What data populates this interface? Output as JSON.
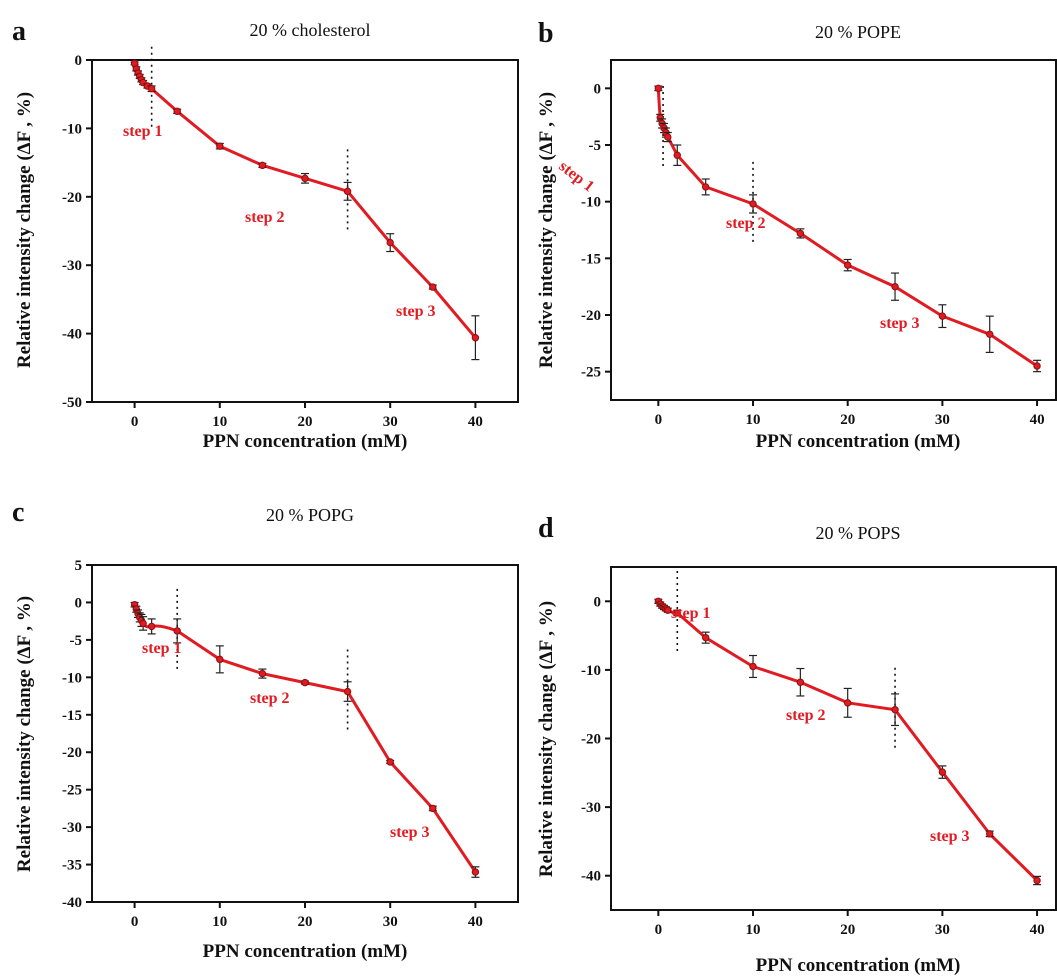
{
  "chart_data": [
    {
      "type": "line",
      "panel_label": "a",
      "title": "20 % cholesterol",
      "xlabel": "PPN concentration (mM)",
      "ylabel": "Relative intensity change (ΔF ,  %)",
      "xlim": [
        -5,
        45
      ],
      "ylim": [
        -50,
        0
      ],
      "xticks": [
        0,
        10,
        20,
        30,
        40
      ],
      "yticks": [
        -50,
        -40,
        -30,
        -20,
        -10,
        0
      ],
      "x": [
        0,
        0.2,
        0.4,
        0.6,
        0.8,
        1.0,
        1.5,
        2,
        5,
        10,
        15,
        20,
        25,
        30,
        35,
        40
      ],
      "series": [
        {
          "color": "#e11b22",
          "values": [
            -0.5,
            -1.3,
            -1.9,
            -2.4,
            -2.9,
            -3.3,
            -3.8,
            -4.2,
            -7.5,
            -12.6,
            -15.4,
            -17.3,
            -19.2,
            -26.7,
            -33.2,
            -40.6
          ],
          "errors": [
            0.2,
            0.3,
            0.3,
            0.3,
            0.3,
            0.3,
            0.3,
            0.4,
            0.3,
            0.4,
            0.3,
            0.7,
            1.3,
            1.3,
            0.3,
            3.2
          ]
        }
      ],
      "dividers": [
        2,
        25
      ],
      "step_labels": [
        "step 1",
        "step 2",
        "step 3"
      ],
      "grid": false,
      "legend": "none"
    },
    {
      "type": "line",
      "panel_label": "b",
      "title": "20 % POPE",
      "xlabel": "PPN concentration (mM)",
      "ylabel": "Relative intensity change (ΔF ,  %)",
      "xlim": [
        -5,
        42
      ],
      "ylim": [
        -27.5,
        2.5
      ],
      "xticks": [
        0,
        10,
        20,
        30,
        40
      ],
      "yticks": [
        -25,
        -20,
        -15,
        -10,
        -5,
        0
      ],
      "x": [
        0,
        0.2,
        0.4,
        0.6,
        0.8,
        1.0,
        2,
        5,
        10,
        15,
        20,
        25,
        30,
        35,
        40
      ],
      "series": [
        {
          "color": "#e11b22",
          "values": [
            0,
            -2.6,
            -3.1,
            -3.5,
            -3.9,
            -4.3,
            -5.9,
            -8.7,
            -10.2,
            -12.8,
            -15.6,
            -17.5,
            -20.1,
            -21.7,
            -24.5
          ],
          "errors": [
            0.2,
            0.3,
            0.4,
            0.4,
            0.4,
            0.4,
            0.9,
            0.7,
            0.8,
            0.4,
            0.5,
            1.2,
            1.0,
            1.6,
            0.5
          ]
        }
      ],
      "dividers": [
        0.5,
        10
      ],
      "step_labels": [
        "step 1",
        "step 2",
        "step 3"
      ],
      "grid": false,
      "legend": "none"
    },
    {
      "type": "line",
      "panel_label": "c",
      "title": "20 % POPG",
      "xlabel": "PPN concentration (mM)",
      "ylabel": "Relative intensity change (ΔF ,  %)",
      "xlim": [
        -5,
        45
      ],
      "ylim": [
        -40,
        5
      ],
      "xticks": [
        0,
        10,
        20,
        30,
        40
      ],
      "yticks": [
        -40,
        -35,
        -30,
        -25,
        -20,
        -15,
        -10,
        -5,
        0,
        5
      ],
      "x": [
        0,
        0.2,
        0.4,
        0.6,
        0.8,
        1.0,
        2,
        5,
        10,
        15,
        20,
        25,
        30,
        35,
        40
      ],
      "series": [
        {
          "color": "#e11b22",
          "values": [
            -0.3,
            -0.9,
            -1.5,
            -2.0,
            -2.4,
            -2.8,
            -3.2,
            -3.8,
            -7.6,
            -9.5,
            -10.7,
            -11.9,
            -21.3,
            -27.5,
            -36.0
          ],
          "errors": [
            0.3,
            0.4,
            0.5,
            0.6,
            0.8,
            0.9,
            1.0,
            1.6,
            1.8,
            0.6,
            0.2,
            1.3,
            0.2,
            0.3,
            0.7
          ]
        }
      ],
      "dividers": [
        5,
        25
      ],
      "step_labels": [
        "step 1",
        "step 2",
        "step 3"
      ],
      "grid": false,
      "legend": "none"
    },
    {
      "type": "line",
      "panel_label": "d",
      "title": "20 % POPS",
      "xlabel": "PPN concentration (mM)",
      "ylabel": "Relative intensity change (ΔF ,  %)",
      "xlim": [
        -5,
        42
      ],
      "ylim": [
        -45,
        5
      ],
      "xticks": [
        0,
        10,
        20,
        30,
        40
      ],
      "yticks": [
        -40,
        -30,
        -20,
        -10,
        0
      ],
      "x": [
        0,
        0.2,
        0.4,
        0.6,
        0.8,
        1.0,
        2,
        5,
        10,
        15,
        20,
        25,
        30,
        35,
        40
      ],
      "series": [
        {
          "color": "#e11b22",
          "values": [
            0,
            -0.4,
            -0.7,
            -0.9,
            -1.1,
            -1.3,
            -1.7,
            -5.3,
            -9.5,
            -11.8,
            -14.8,
            -15.8,
            -24.9,
            -33.9,
            -40.7
          ],
          "errors": [
            0.3,
            0.3,
            0.3,
            0.3,
            0.3,
            0.3,
            0.4,
            0.8,
            1.6,
            2.0,
            2.1,
            2.3,
            0.9,
            0.4,
            0.6
          ]
        }
      ],
      "dividers": [
        2,
        25
      ],
      "step_labels": [
        "step 1",
        "step 2",
        "step 3"
      ],
      "grid": false,
      "legend": "none"
    }
  ]
}
